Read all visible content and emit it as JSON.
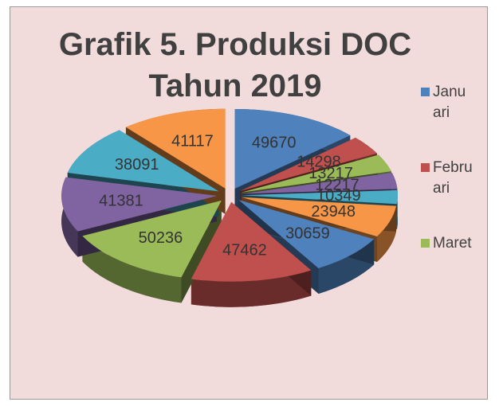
{
  "chart_data": {
    "type": "pie3d",
    "title": "Grafik 5. Produksi DOC Tahun 2019",
    "categories": [
      "Januari",
      "Februari",
      "Maret",
      null,
      null,
      null,
      null,
      null,
      null,
      null,
      null,
      null
    ],
    "values": [
      49670,
      14298,
      13217,
      12217,
      10349,
      23948,
      30659,
      47462,
      50236,
      41381,
      38091,
      41117
    ],
    "colors": [
      "#4f81bd",
      "#c0504d",
      "#9bbb59",
      "#8064a2",
      "#4bacc6",
      "#f79646",
      "#4f81bd",
      "#c0504d",
      "#9bbb59",
      "#8064a2",
      "#4bacc6",
      "#f79646"
    ],
    "legend": "right"
  }
}
